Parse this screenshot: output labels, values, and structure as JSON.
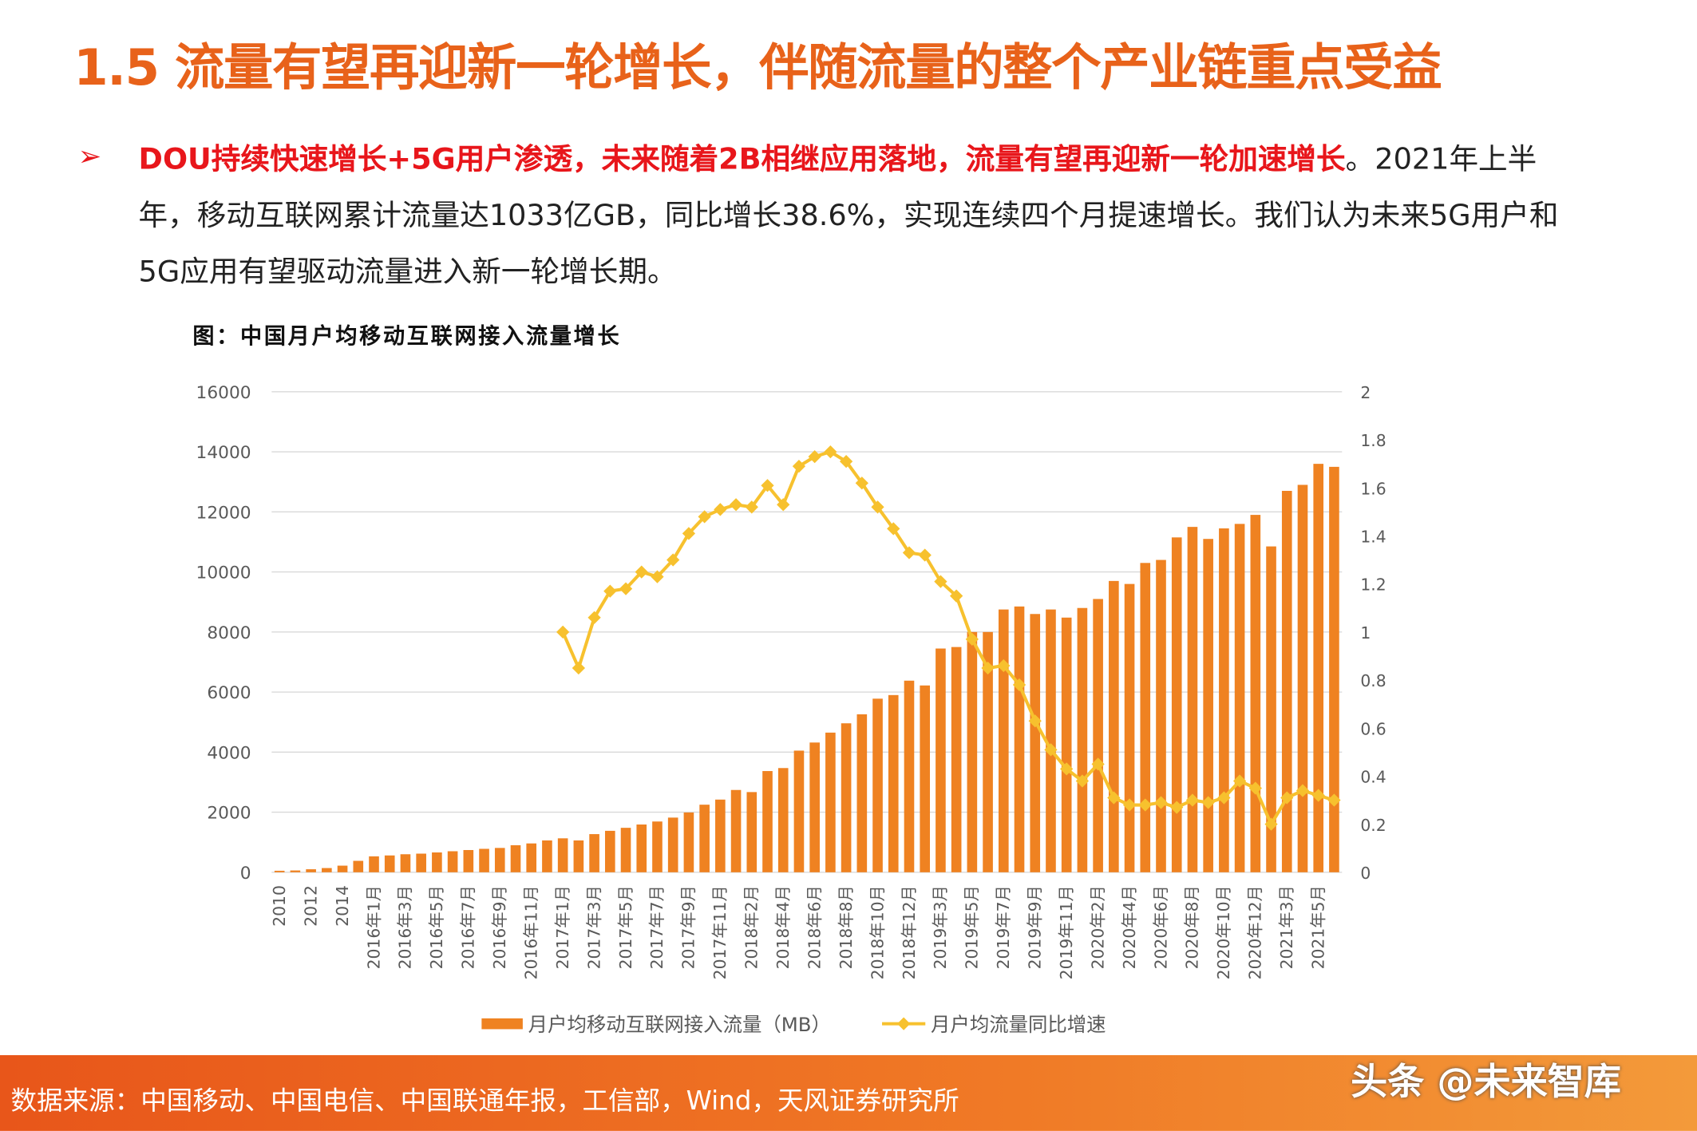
{
  "header": {
    "title": "1.5 流量有望再迎新一轮增长，伴随流量的整个产业链重点受益"
  },
  "bullet": {
    "highlight": "DOU持续快速增长+5G用户渗透，未来随着2B相继应用落地，流量有望再迎新一轮加速增长",
    "text": "。2021年上半年，移动互联网累计流量达1033亿GB，同比增长38.6%，实现连续四个月提速增长。我们认为未来5G用户和5G应用有望驱动流量进入新一轮增长期。"
  },
  "footer": {
    "source": "数据来源：中国移动、中国电信、中国联通年报，工信部，Wind，天风证券研究所",
    "watermark": "头条 @未来智库"
  },
  "chart_data": {
    "type": "bar",
    "title": "图：中国月户均移动互联网接入流量增长",
    "categories": [
      "2010",
      null,
      "2012",
      null,
      "2014",
      null,
      "2016年1月",
      null,
      "2016年3月",
      null,
      "2016年5月",
      null,
      "2016年7月",
      null,
      "2016年9月",
      null,
      "2016年11月",
      null,
      "2017年1月",
      null,
      "2017年3月",
      null,
      "2017年5月",
      null,
      "2017年7月",
      null,
      "2017年9月",
      null,
      "2017年11月",
      null,
      "2018年2月",
      null,
      "2018年4月",
      null,
      "2018年6月",
      null,
      "2018年8月",
      null,
      "2018年10月",
      null,
      "2018年12月",
      null,
      "2019年3月",
      null,
      "2019年5月",
      null,
      "2019年7月",
      null,
      "2019年9月",
      null,
      "2019年11月",
      null,
      "2020年2月",
      null,
      "2020年4月",
      null,
      "2020年6月",
      null,
      "2020年8月",
      null,
      "2020年10月",
      null,
      "2020年12月",
      null,
      "2021年3月",
      null,
      "2021年5月",
      null
    ],
    "series": [
      {
        "name": "月户均移动互联网接入流量（MB）",
        "color": "#ef8221",
        "values": [
          50,
          60,
          100,
          140,
          220,
          380,
          530,
          560,
          600,
          620,
          660,
          700,
          740,
          780,
          810,
          900,
          960,
          1060,
          1130,
          1060,
          1270,
          1380,
          1480,
          1590,
          1690,
          1820,
          1990,
          2250,
          2420,
          2740,
          2670,
          3370,
          3470,
          4050,
          4320,
          4650,
          4960,
          5260,
          5780,
          5900,
          6380,
          6220,
          7450,
          7500,
          8000,
          8000,
          8750,
          8850,
          8600,
          8750,
          8480,
          8800,
          9100,
          9700,
          9600,
          10300,
          10400,
          11150,
          11500,
          11100,
          11450,
          11600,
          11900,
          10850,
          12700,
          12900,
          13600,
          13500
        ]
      },
      {
        "name": "月户均流量同比增速",
        "color": "#f7c12e",
        "type": "line",
        "axis": "y2",
        "values": [
          null,
          null,
          null,
          null,
          null,
          null,
          null,
          null,
          null,
          null,
          null,
          null,
          null,
          null,
          null,
          null,
          null,
          null,
          1.0,
          0.85,
          1.06,
          1.17,
          1.18,
          1.25,
          1.23,
          1.3,
          1.41,
          1.48,
          1.51,
          1.53,
          1.52,
          1.61,
          1.53,
          1.69,
          1.73,
          1.75,
          1.71,
          1.62,
          1.52,
          1.43,
          1.33,
          1.32,
          1.21,
          1.15,
          0.97,
          0.85,
          0.86,
          0.78,
          0.63,
          0.51,
          0.43,
          0.38,
          0.45,
          0.31,
          0.28,
          0.28,
          0.29,
          0.27,
          0.3,
          0.29,
          0.31,
          0.38,
          0.35,
          0.2,
          0.31,
          0.34,
          0.32,
          0.3
        ]
      }
    ],
    "ylim": [
      0,
      16000
    ],
    "yticks": [
      0,
      2000,
      4000,
      6000,
      8000,
      10000,
      12000,
      14000,
      16000
    ],
    "y2lim": [
      0,
      2
    ],
    "y2ticks": [
      0,
      0.2,
      0.4,
      0.6,
      0.8,
      1,
      1.2,
      1.4,
      1.6,
      1.8,
      2
    ],
    "grid": true,
    "legend": "bottom"
  }
}
